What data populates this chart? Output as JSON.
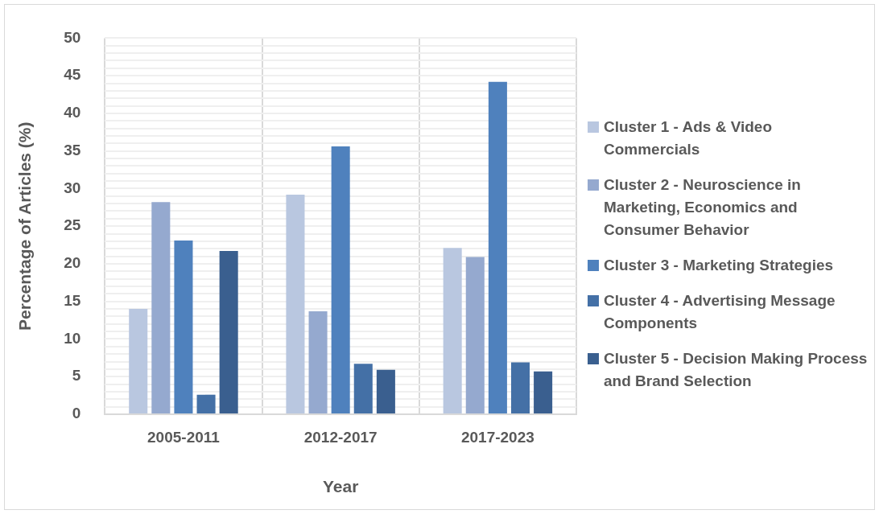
{
  "chart_data": {
    "type": "bar",
    "xlabel": "Year",
    "ylabel": "Percentage of Articles (%)",
    "categories": [
      "2005-2011",
      "2012-2017",
      "2017-2023"
    ],
    "series": [
      {
        "name": "Cluster 1 - Ads & Video Commercials",
        "color": "#b9c7e0",
        "values": [
          14.0,
          29.2,
          22.1
        ]
      },
      {
        "name": "Cluster 2 - Neuroscience in Marketing, Economics and Consumer Behavior",
        "color": "#95a9cf",
        "values": [
          28.2,
          13.7,
          20.9
        ]
      },
      {
        "name": "Cluster 3 - Marketing Strategies",
        "color": "#4f81bd",
        "values": [
          23.1,
          35.6,
          44.2
        ]
      },
      {
        "name": "Cluster 4 - Advertising Message Components",
        "color": "#4470a6",
        "values": [
          2.6,
          6.7,
          6.9
        ]
      },
      {
        "name": "Cluster 5 - Decision Making Process and Brand Selection",
        "color": "#3a5f8f",
        "values": [
          21.7,
          5.9,
          5.7
        ]
      }
    ],
    "ylim": [
      0,
      50
    ],
    "yticks": [
      0,
      {
        "value": 1,
        "label": null
      },
      {
        "value": 2,
        "label": null
      },
      {
        "value": 3,
        "label": null
      },
      {
        "value": 4,
        "label": null
      },
      5,
      {
        "value": 6,
        "label": null
      },
      {
        "value": 7,
        "label": null
      },
      {
        "value": 8,
        "label": null
      },
      {
        "value": 9,
        "label": null
      },
      10,
      {
        "value": 11,
        "label": null
      },
      {
        "value": 12,
        "label": null
      },
      {
        "value": 13,
        "label": null
      },
      {
        "value": 14,
        "label": null
      },
      15,
      {
        "value": 16,
        "label": null
      },
      {
        "value": 17,
        "label": null
      },
      {
        "value": 18,
        "label": null
      },
      {
        "value": 19,
        "label": null
      },
      20,
      {
        "value": 21,
        "label": null
      },
      {
        "value": 22,
        "label": null
      },
      {
        "value": 23,
        "label": null
      },
      {
        "value": 24,
        "label": null
      },
      25,
      {
        "value": 26,
        "label": null
      },
      {
        "value": 27,
        "label": null
      },
      {
        "value": 28,
        "label": null
      },
      {
        "value": 29,
        "label": null
      },
      30,
      {
        "value": 31,
        "label": null
      },
      {
        "value": 32,
        "label": null
      },
      {
        "value": 33,
        "label": null
      },
      {
        "value": 34,
        "label": null
      },
      35,
      {
        "value": 36,
        "label": null
      },
      {
        "value": 37,
        "label": null
      },
      {
        "value": 38,
        "label": null
      },
      {
        "value": 39,
        "label": null
      },
      40,
      {
        "value": 41,
        "label": null
      },
      {
        "value": 42,
        "label": null
      },
      {
        "value": 43,
        "label": null
      },
      {
        "value": 44,
        "label": null
      },
      45,
      {
        "value": 46,
        "label": null
      },
      {
        "value": 47,
        "label": null
      },
      {
        "value": 48,
        "label": null
      },
      {
        "value": 49,
        "label": null
      },
      50
    ],
    "grid": true,
    "legend": "right"
  }
}
